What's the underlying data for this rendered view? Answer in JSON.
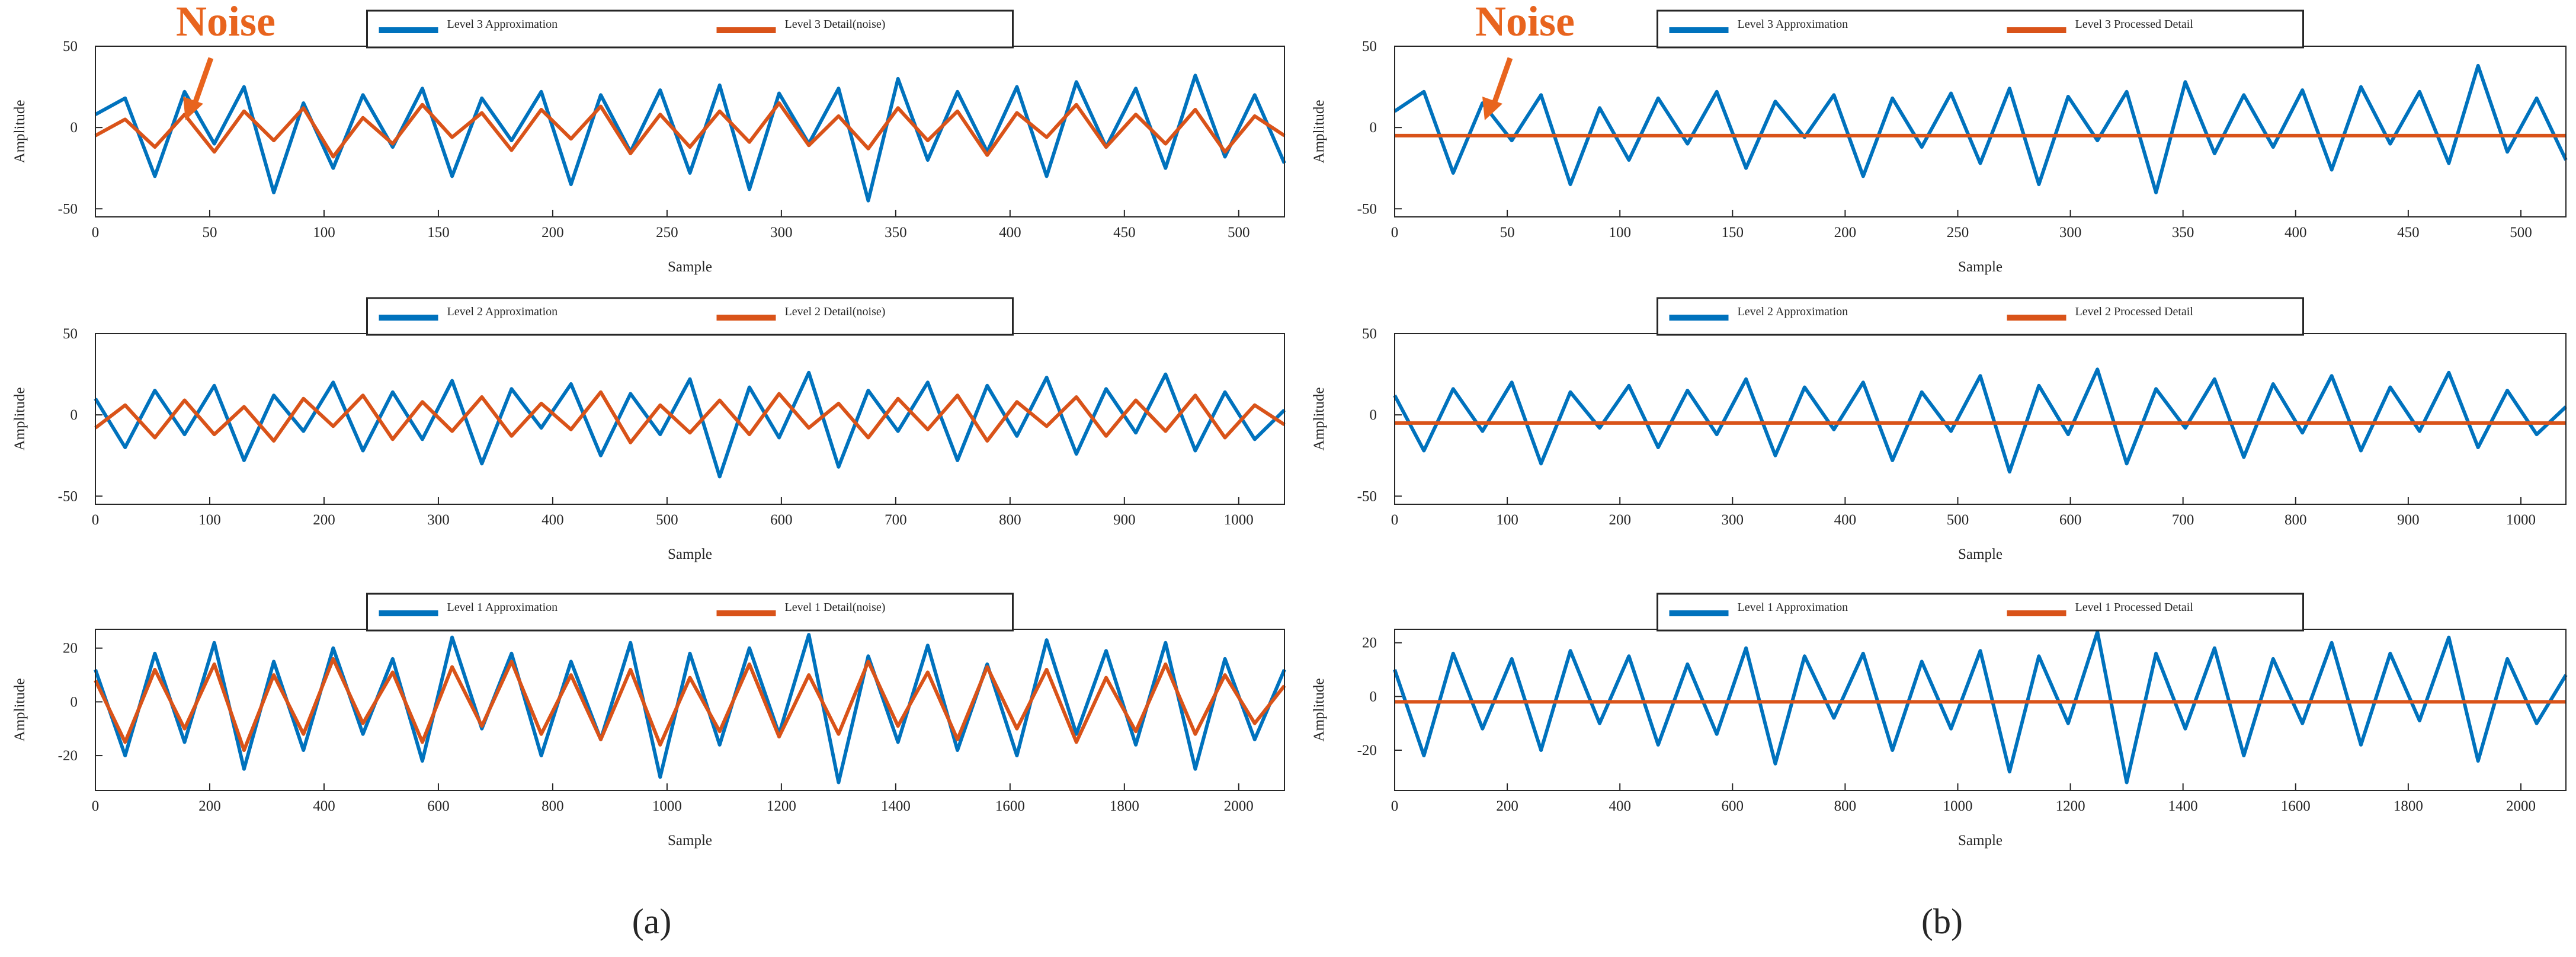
{
  "chart_data": [
    {
      "type": "line",
      "xlabel": "Sample",
      "ylabel": "Amplitude",
      "annotation": "Noise",
      "xlim": [
        0,
        520
      ],
      "ylim": [
        -55,
        50
      ],
      "xticks": [
        0,
        50,
        100,
        150,
        200,
        250,
        300,
        350,
        400,
        450,
        500
      ],
      "yticks": [
        -50,
        0,
        50
      ],
      "series": [
        {
          "name": "Level 3 Approximation",
          "color": "#0072BD",
          "x": [
            0,
            13,
            26,
            39,
            52,
            65,
            78,
            91,
            104,
            117,
            130,
            143,
            156,
            169,
            182,
            195,
            208,
            221,
            234,
            247,
            260,
            273,
            286,
            299,
            312,
            325,
            338,
            351,
            364,
            377,
            390,
            403,
            416,
            429,
            442,
            455,
            468,
            481,
            494,
            507,
            520
          ],
          "values": [
            8,
            18,
            -30,
            22,
            -10,
            25,
            -40,
            15,
            -25,
            20,
            -12,
            24,
            -30,
            18,
            -8,
            22,
            -35,
            20,
            -15,
            23,
            -28,
            26,
            -38,
            21,
            -10,
            24,
            -45,
            30,
            -20,
            22,
            -15,
            25,
            -30,
            28,
            -12,
            24,
            -25,
            32,
            -18,
            20,
            -22
          ]
        },
        {
          "name": "Level 3 Detail(noise)",
          "color": "#D95319",
          "x": [
            0,
            13,
            26,
            39,
            52,
            65,
            78,
            91,
            104,
            117,
            130,
            143,
            156,
            169,
            182,
            195,
            208,
            221,
            234,
            247,
            260,
            273,
            286,
            299,
            312,
            325,
            338,
            351,
            364,
            377,
            390,
            403,
            416,
            429,
            442,
            455,
            468,
            481,
            494,
            507,
            520
          ],
          "values": [
            -5,
            5,
            -12,
            8,
            -15,
            10,
            -8,
            12,
            -18,
            6,
            -10,
            14,
            -6,
            9,
            -14,
            11,
            -7,
            13,
            -16,
            8,
            -12,
            10,
            -9,
            15,
            -11,
            7,
            -13,
            12,
            -8,
            10,
            -17,
            9,
            -6,
            14,
            -12,
            8,
            -10,
            11,
            -15,
            7,
            -5
          ]
        }
      ]
    },
    {
      "type": "line",
      "xlabel": "Sample",
      "ylabel": "Amplitude",
      "xlim": [
        0,
        1040
      ],
      "ylim": [
        -55,
        50
      ],
      "xticks": [
        0,
        100,
        200,
        300,
        400,
        500,
        600,
        700,
        800,
        900,
        1000
      ],
      "yticks": [
        -50,
        0,
        50
      ],
      "series": [
        {
          "name": "Level 2 Approximation",
          "color": "#0072BD",
          "x": [
            0,
            26,
            52,
            78,
            104,
            130,
            156,
            182,
            208,
            234,
            260,
            286,
            312,
            338,
            364,
            390,
            416,
            442,
            468,
            494,
            520,
            546,
            572,
            598,
            624,
            650,
            676,
            702,
            728,
            754,
            780,
            806,
            832,
            858,
            884,
            910,
            936,
            962,
            988,
            1014,
            1040
          ],
          "values": [
            10,
            -20,
            15,
            -12,
            18,
            -28,
            12,
            -10,
            20,
            -22,
            14,
            -15,
            21,
            -30,
            16,
            -8,
            19,
            -25,
            13,
            -12,
            22,
            -38,
            17,
            -14,
            26,
            -32,
            15,
            -10,
            20,
            -28,
            18,
            -13,
            23,
            -24,
            16,
            -11,
            25,
            -22,
            14,
            -15,
            3
          ]
        },
        {
          "name": "Level 2 Detail(noise)",
          "color": "#D95319",
          "x": [
            0,
            26,
            52,
            78,
            104,
            130,
            156,
            182,
            208,
            234,
            260,
            286,
            312,
            338,
            364,
            390,
            416,
            442,
            468,
            494,
            520,
            546,
            572,
            598,
            624,
            650,
            676,
            702,
            728,
            754,
            780,
            806,
            832,
            858,
            884,
            910,
            936,
            962,
            988,
            1014,
            1040
          ],
          "values": [
            -8,
            6,
            -14,
            9,
            -12,
            5,
            -16,
            10,
            -7,
            12,
            -15,
            8,
            -10,
            11,
            -13,
            7,
            -9,
            14,
            -17,
            6,
            -11,
            9,
            -12,
            13,
            -8,
            7,
            -14,
            10,
            -9,
            12,
            -16,
            8,
            -7,
            11,
            -13,
            9,
            -10,
            12,
            -14,
            6,
            -6
          ]
        }
      ]
    },
    {
      "type": "line",
      "xlabel": "Sample",
      "ylabel": "Amplitude",
      "xlim": [
        0,
        2080
      ],
      "ylim": [
        -33,
        27
      ],
      "xticks": [
        0,
        200,
        400,
        600,
        800,
        1000,
        1200,
        1400,
        1600,
        1800,
        2000
      ],
      "yticks": [
        -20,
        0,
        20
      ],
      "series": [
        {
          "name": "Level 1 Approximation",
          "color": "#0072BD",
          "x": [
            0,
            52,
            104,
            156,
            208,
            260,
            312,
            364,
            416,
            468,
            520,
            572,
            624,
            676,
            728,
            780,
            832,
            884,
            936,
            988,
            1040,
            1092,
            1144,
            1196,
            1248,
            1300,
            1352,
            1404,
            1456,
            1508,
            1560,
            1612,
            1664,
            1716,
            1768,
            1820,
            1872,
            1924,
            1976,
            2028,
            2080
          ],
          "values": [
            12,
            -20,
            18,
            -15,
            22,
            -25,
            15,
            -18,
            20,
            -12,
            16,
            -22,
            24,
            -10,
            18,
            -20,
            15,
            -14,
            22,
            -28,
            18,
            -16,
            20,
            -12,
            25,
            -30,
            17,
            -15,
            21,
            -18,
            14,
            -20,
            23,
            -12,
            19,
            -16,
            22,
            -25,
            16,
            -14,
            12
          ]
        },
        {
          "name": "Level 1 Detail(noise)",
          "color": "#D95319",
          "x": [
            0,
            52,
            104,
            156,
            208,
            260,
            312,
            364,
            416,
            468,
            520,
            572,
            624,
            676,
            728,
            780,
            832,
            884,
            936,
            988,
            1040,
            1092,
            1144,
            1196,
            1248,
            1300,
            1352,
            1404,
            1456,
            1508,
            1560,
            1612,
            1664,
            1716,
            1768,
            1820,
            1872,
            1924,
            1976,
            2028,
            2080
          ],
          "values": [
            8,
            -15,
            12,
            -10,
            14,
            -18,
            10,
            -12,
            16,
            -8,
            11,
            -15,
            13,
            -9,
            15,
            -12,
            10,
            -14,
            12,
            -16,
            9,
            -11,
            14,
            -13,
            10,
            -12,
            15,
            -9,
            11,
            -14,
            13,
            -10,
            12,
            -15,
            9,
            -11,
            14,
            -12,
            10,
            -8,
            6
          ]
        }
      ]
    },
    {
      "type": "line",
      "xlabel": "Sample",
      "ylabel": "Amplitude",
      "annotation": "Noise",
      "xlim": [
        0,
        520
      ],
      "ylim": [
        -55,
        50
      ],
      "xticks": [
        0,
        50,
        100,
        150,
        200,
        250,
        300,
        350,
        400,
        450,
        500
      ],
      "yticks": [
        -50,
        0,
        50
      ],
      "series": [
        {
          "name": "Level 3 Approximation",
          "color": "#0072BD",
          "x": [
            0,
            13,
            26,
            39,
            52,
            65,
            78,
            91,
            104,
            117,
            130,
            143,
            156,
            169,
            182,
            195,
            208,
            221,
            234,
            247,
            260,
            273,
            286,
            299,
            312,
            325,
            338,
            351,
            364,
            377,
            390,
            403,
            416,
            429,
            442,
            455,
            468,
            481,
            494,
            507,
            520
          ],
          "values": [
            10,
            22,
            -28,
            15,
            -8,
            20,
            -35,
            12,
            -20,
            18,
            -10,
            22,
            -25,
            16,
            -6,
            20,
            -30,
            18,
            -12,
            21,
            -22,
            24,
            -35,
            19,
            -8,
            22,
            -40,
            28,
            -16,
            20,
            -12,
            23,
            -26,
            25,
            -10,
            22,
            -22,
            38,
            -15,
            18,
            -20
          ]
        },
        {
          "name": "Level 3 Processed Detail",
          "color": "#D95319",
          "x": [
            0,
            520
          ],
          "values": [
            -5,
            -5
          ]
        }
      ]
    },
    {
      "type": "line",
      "xlabel": "Sample",
      "ylabel": "Amplitude",
      "xlim": [
        0,
        1040
      ],
      "ylim": [
        -55,
        50
      ],
      "xticks": [
        0,
        100,
        200,
        300,
        400,
        500,
        600,
        700,
        800,
        900,
        1000
      ],
      "yticks": [
        -50,
        0,
        50
      ],
      "series": [
        {
          "name": "Level 2 Approximation",
          "color": "#0072BD",
          "x": [
            0,
            26,
            52,
            78,
            104,
            130,
            156,
            182,
            208,
            234,
            260,
            286,
            312,
            338,
            364,
            390,
            416,
            442,
            468,
            494,
            520,
            546,
            572,
            598,
            624,
            650,
            676,
            702,
            728,
            754,
            780,
            806,
            832,
            858,
            884,
            910,
            936,
            962,
            988,
            1014,
            1040
          ],
          "values": [
            12,
            -22,
            16,
            -10,
            20,
            -30,
            14,
            -8,
            18,
            -20,
            15,
            -12,
            22,
            -25,
            17,
            -9,
            20,
            -28,
            14,
            -10,
            24,
            -35,
            18,
            -12,
            28,
            -30,
            16,
            -8,
            22,
            -26,
            19,
            -11,
            24,
            -22,
            17,
            -10,
            26,
            -20,
            15,
            -12,
            5
          ]
        },
        {
          "name": "Level 2 Processed Detail",
          "color": "#D95319",
          "x": [
            0,
            1040
          ],
          "values": [
            -5,
            -5
          ]
        }
      ]
    },
    {
      "type": "line",
      "xlabel": "Sample",
      "ylabel": "Amplitude",
      "xlim": [
        0,
        2080
      ],
      "ylim": [
        -35,
        25
      ],
      "xticks": [
        0,
        200,
        400,
        600,
        800,
        1000,
        1200,
        1400,
        1600,
        1800,
        2000
      ],
      "yticks": [
        -20,
        0,
        20
      ],
      "series": [
        {
          "name": "Level 1 Approximation",
          "color": "#0072BD",
          "x": [
            0,
            52,
            104,
            156,
            208,
            260,
            312,
            364,
            416,
            468,
            520,
            572,
            624,
            676,
            728,
            780,
            832,
            884,
            936,
            988,
            1040,
            1092,
            1144,
            1196,
            1248,
            1300,
            1352,
            1404,
            1456,
            1508,
            1560,
            1612,
            1664,
            1716,
            1768,
            1820,
            1872,
            1924,
            1976,
            2028,
            2080
          ],
          "values": [
            10,
            -22,
            16,
            -12,
            14,
            -20,
            17,
            -10,
            15,
            -18,
            12,
            -14,
            18,
            -25,
            15,
            -8,
            16,
            -20,
            13,
            -12,
            17,
            -28,
            15,
            -10,
            24,
            -32,
            16,
            -12,
            18,
            -22,
            14,
            -10,
            20,
            -18,
            16,
            -9,
            22,
            -24,
            14,
            -10,
            8
          ]
        },
        {
          "name": "Level 1 Processed Detail",
          "color": "#D95319",
          "x": [
            0,
            2080
          ],
          "values": [
            -2,
            -2
          ]
        }
      ]
    }
  ],
  "captions": [
    "(a)",
    "(b)"
  ]
}
